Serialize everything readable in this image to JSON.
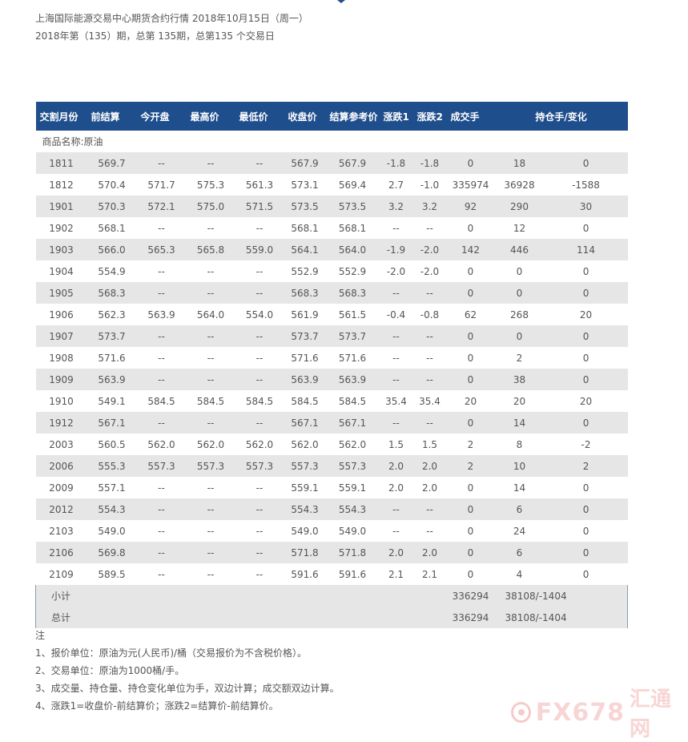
{
  "header": {
    "line1": "上海国际能源交易中心期货合约行情 2018年10月15日（周一）",
    "line2": "2018年第（135）期，总第 135期，总第135 个交易日"
  },
  "table": {
    "columns": [
      "交割月份",
      "前结算",
      "今开盘",
      "最高价",
      "最低价",
      "收盘价",
      "结算参考价",
      "涨跌1",
      "涨跌2",
      "成交手",
      "持仓手/变化"
    ],
    "product_label": "商品名称:原油",
    "rows": [
      [
        "1811",
        "569.7",
        "--",
        "--",
        "--",
        "567.9",
        "567.9",
        "-1.8",
        "-1.8",
        "0",
        "18",
        "0"
      ],
      [
        "1812",
        "570.4",
        "571.7",
        "575.3",
        "561.3",
        "573.1",
        "569.4",
        "2.7",
        "-1.0",
        "335974",
        "36928",
        "-1588"
      ],
      [
        "1901",
        "570.3",
        "572.1",
        "575.0",
        "571.5",
        "573.5",
        "573.5",
        "3.2",
        "3.2",
        "92",
        "290",
        "30"
      ],
      [
        "1902",
        "568.1",
        "--",
        "--",
        "--",
        "568.1",
        "568.1",
        "--",
        "--",
        "0",
        "12",
        "0"
      ],
      [
        "1903",
        "566.0",
        "565.3",
        "565.8",
        "559.0",
        "564.1",
        "564.0",
        "-1.9",
        "-2.0",
        "142",
        "446",
        "114"
      ],
      [
        "1904",
        "554.9",
        "--",
        "--",
        "--",
        "552.9",
        "552.9",
        "-2.0",
        "-2.0",
        "0",
        "0",
        "0"
      ],
      [
        "1905",
        "568.3",
        "--",
        "--",
        "--",
        "568.3",
        "568.3",
        "--",
        "--",
        "0",
        "0",
        "0"
      ],
      [
        "1906",
        "562.3",
        "563.9",
        "564.0",
        "554.0",
        "561.9",
        "561.5",
        "-0.4",
        "-0.8",
        "62",
        "268",
        "20"
      ],
      [
        "1907",
        "573.7",
        "--",
        "--",
        "--",
        "573.7",
        "573.7",
        "--",
        "--",
        "0",
        "0",
        "0"
      ],
      [
        "1908",
        "571.6",
        "--",
        "--",
        "--",
        "571.6",
        "571.6",
        "--",
        "--",
        "0",
        "2",
        "0"
      ],
      [
        "1909",
        "563.9",
        "--",
        "--",
        "--",
        "563.9",
        "563.9",
        "--",
        "--",
        "0",
        "38",
        "0"
      ],
      [
        "1910",
        "549.1",
        "584.5",
        "584.5",
        "584.5",
        "584.5",
        "584.5",
        "35.4",
        "35.4",
        "20",
        "20",
        "20"
      ],
      [
        "1912",
        "567.1",
        "--",
        "--",
        "--",
        "567.1",
        "567.1",
        "--",
        "--",
        "0",
        "14",
        "0"
      ],
      [
        "2003",
        "560.5",
        "562.0",
        "562.0",
        "562.0",
        "562.0",
        "562.0",
        "1.5",
        "1.5",
        "2",
        "8",
        "-2"
      ],
      [
        "2006",
        "555.3",
        "557.3",
        "557.3",
        "557.3",
        "557.3",
        "557.3",
        "2.0",
        "2.0",
        "2",
        "10",
        "2"
      ],
      [
        "2009",
        "557.1",
        "--",
        "--",
        "--",
        "559.1",
        "559.1",
        "2.0",
        "2.0",
        "0",
        "14",
        "0"
      ],
      [
        "2012",
        "554.3",
        "--",
        "--",
        "--",
        "554.3",
        "554.3",
        "--",
        "--",
        "0",
        "6",
        "0"
      ],
      [
        "2103",
        "549.0",
        "--",
        "--",
        "--",
        "549.0",
        "549.0",
        "--",
        "--",
        "0",
        "24",
        "0"
      ],
      [
        "2106",
        "569.8",
        "--",
        "--",
        "--",
        "571.8",
        "571.8",
        "2.0",
        "2.0",
        "0",
        "6",
        "0"
      ],
      [
        "2109",
        "589.5",
        "--",
        "--",
        "--",
        "591.6",
        "591.6",
        "2.1",
        "2.1",
        "0",
        "4",
        "0"
      ]
    ],
    "summary": [
      {
        "label": "小计",
        "volume": "336294",
        "oi": "38108/-1404"
      },
      {
        "label": "总计",
        "volume": "336294",
        "oi": "38108/-1404"
      }
    ]
  },
  "notes": {
    "title": "注",
    "items": [
      "1、报价单位：原油为元(人民币)/桶（交易报价为不含税价格）。",
      "2、交易单位：原油为1000桶/手。",
      "3、成交量、持仓量、持仓变化单位为手，双边计算；成交额双边计算。",
      "4、涨跌1=收盘价-前结算价；涨跌2=结算价-前结算价。"
    ]
  },
  "watermark": {
    "latin": "FX678",
    "cjk": "汇通网",
    "color": "#f3b3b3"
  },
  "colors": {
    "header_bg": "#1f4e8c",
    "stripe": "#e6e6e6"
  }
}
